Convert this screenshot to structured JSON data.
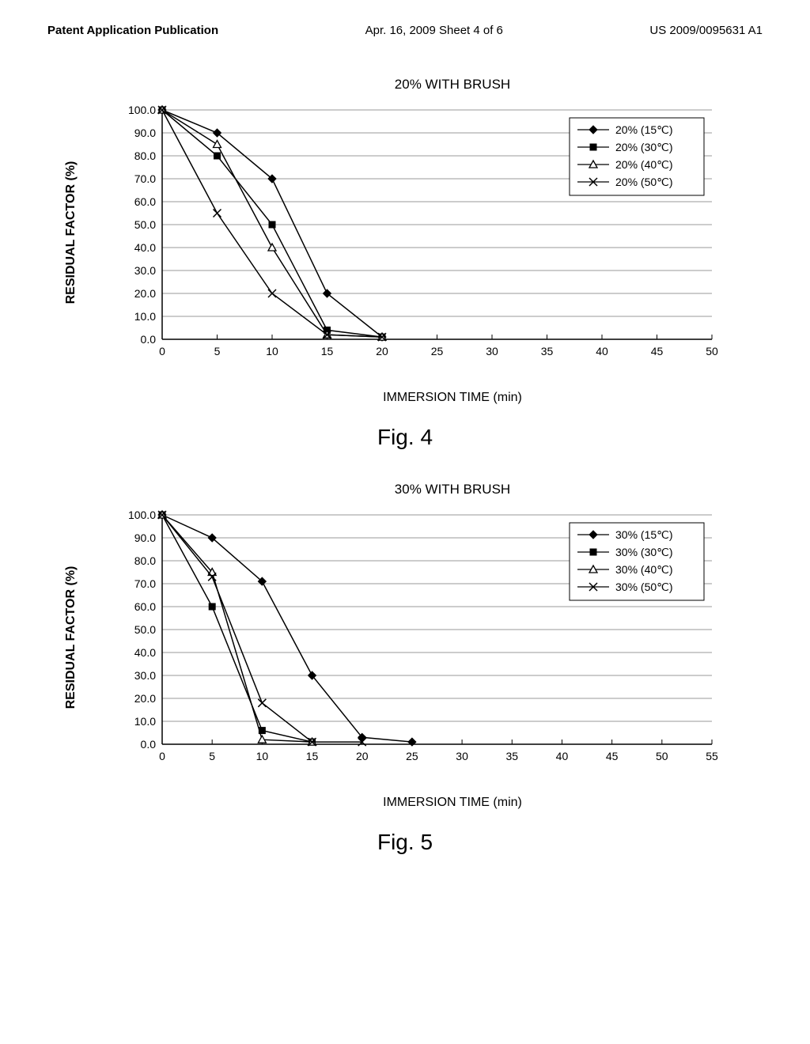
{
  "header": {
    "left": "Patent Application Publication",
    "middle": "Apr. 16, 2009  Sheet 4 of 6",
    "right": "US 2009/0095631 A1"
  },
  "chart1": {
    "title": "20% WITH BRUSH",
    "ylabel": "RESIDUAL FACTOR (%)",
    "xlabel": "IMMERSION TIME (min)",
    "caption": "Fig. 4",
    "xlim": [
      0,
      50
    ],
    "xtick_step": 5,
    "ylim": [
      0,
      100
    ],
    "ytick_step": 10,
    "legend": [
      "20% (15℃)",
      "20% (30℃)",
      "20% (40℃)",
      "20% (50℃)"
    ],
    "series": [
      {
        "marker": "diamond",
        "fill": "#000",
        "xs": [
          0,
          5,
          10,
          15,
          20
        ],
        "ys": [
          100,
          90,
          70,
          20,
          1
        ]
      },
      {
        "marker": "square",
        "fill": "#000",
        "xs": [
          0,
          5,
          10,
          15,
          20
        ],
        "ys": [
          100,
          80,
          50,
          4,
          1
        ]
      },
      {
        "marker": "triangle",
        "fill": "#fff",
        "xs": [
          0,
          5,
          10,
          15,
          20
        ],
        "ys": [
          100,
          85,
          40,
          2,
          1
        ]
      },
      {
        "marker": "x",
        "fill": "none",
        "xs": [
          0,
          5,
          10,
          15,
          20
        ],
        "ys": [
          100,
          55,
          20,
          2,
          1
        ]
      }
    ],
    "line_color": "#000",
    "grid_color": "#999"
  },
  "chart2": {
    "title": "30% WITH BRUSH",
    "ylabel": "RESIDUAL FACTOR (%)",
    "xlabel": "IMMERSION TIME (min)",
    "caption": "Fig. 5",
    "xlim": [
      0,
      55
    ],
    "xtick_step": 5,
    "ylim": [
      0,
      100
    ],
    "ytick_step": 10,
    "legend": [
      "30% (15℃)",
      "30% (30℃)",
      "30% (40℃)",
      "30% (50℃)"
    ],
    "series": [
      {
        "marker": "diamond",
        "fill": "#000",
        "xs": [
          0,
          5,
          10,
          15,
          20,
          25
        ],
        "ys": [
          100,
          90,
          71,
          30,
          3,
          1
        ]
      },
      {
        "marker": "square",
        "fill": "#000",
        "xs": [
          0,
          5,
          10,
          15
        ],
        "ys": [
          100,
          60,
          6,
          1
        ]
      },
      {
        "marker": "triangle",
        "fill": "#fff",
        "xs": [
          0,
          5,
          10,
          15
        ],
        "ys": [
          100,
          75,
          2,
          1
        ]
      },
      {
        "marker": "x",
        "fill": "none",
        "xs": [
          0,
          5,
          10,
          15,
          20
        ],
        "ys": [
          100,
          73,
          18,
          1,
          1
        ]
      }
    ],
    "line_color": "#000",
    "grid_color": "#999"
  }
}
